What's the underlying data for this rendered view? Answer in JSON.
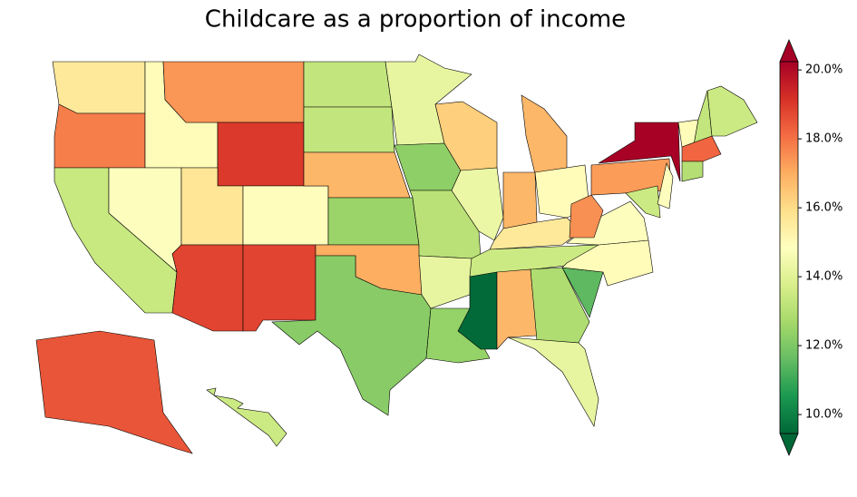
{
  "chart_data": {
    "type": "choropleth",
    "title": "Childcare as a proportion of income",
    "colormap": [
      "#006837",
      "#1a9850",
      "#66bd63",
      "#a6d96a",
      "#d9ef8b",
      "#ffffbf",
      "#fee08b",
      "#fdae61",
      "#f46d43",
      "#d73027",
      "#a50026"
    ],
    "clim": [
      9.45,
      20.24
    ],
    "cticks": [
      {
        "value": 10,
        "label": "10.0%"
      },
      {
        "value": 12,
        "label": "12.0%"
      },
      {
        "value": 14,
        "label": "14.0%"
      },
      {
        "value": 16,
        "label": "16.0%"
      },
      {
        "value": 18,
        "label": "18.0%"
      },
      {
        "value": 20,
        "label": "20.0%"
      }
    ],
    "values": [
      15.6,
      17.8,
      13.4,
      15.0,
      14.8,
      17.4,
      19.0,
      15.7,
      14.9,
      18.8,
      18.8,
      13.3,
      13.3,
      16.8,
      12.5,
      17.0,
      12.2,
      14.2,
      12.3,
      13.1,
      14.2,
      12.4,
      16.3,
      14.3,
      16.8,
      16.8,
      15.0,
      15.6,
      13.5,
      9.5,
      16.8,
      12.9,
      14.2,
      11.5,
      15.0,
      14.8,
      17.5,
      17.3,
      20.2,
      13.5,
      14.8,
      15.0,
      13.3,
      13.5,
      18.2,
      13.0,
      18.5,
      13.5
    ]
  }
}
